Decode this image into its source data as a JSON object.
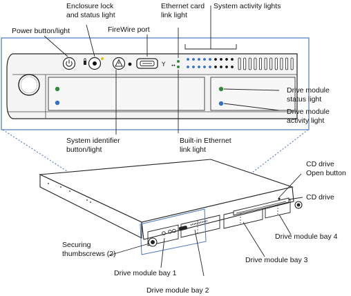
{
  "labels": {
    "power": "Power button/light",
    "enclosure_line1": "Enclosure lock",
    "enclosure_line2": "and status light",
    "firewire": "FireWire port",
    "ethernet_card_line1": "Ethernet card",
    "ethernet_card_line2": "link light",
    "system_activity": "System activity lights",
    "drive_status_line1": "Drive module",
    "drive_status_line2": "status light",
    "drive_activity_line1": "Drive module",
    "drive_activity_line2": "activity light",
    "system_identifier_line1": "System identifier",
    "system_identifier_line2": "button/light",
    "builtin_ethernet_line1": "Built-in Ethernet",
    "builtin_ethernet_line2": "link light",
    "cd_open_line1": "CD drive",
    "cd_open_line2": "Open button",
    "cd_drive": "CD drive",
    "drive_bay_4": "Drive module bay 4",
    "drive_bay_3": "Drive module bay 3",
    "drive_bay_2": "Drive module bay 2",
    "drive_bay_1": "Drive module bay 1",
    "thumbscrews_line1": "Securing",
    "thumbscrews_line2": "thumbscrews (2)"
  },
  "colors": {
    "panel_frame": "#4a78bf",
    "led_green": "#2e8b3a",
    "led_blue": "#2f6fd0",
    "led_yellow": "#d8c21a",
    "line": "#222222",
    "panel_fill": "#f4f4f4"
  }
}
